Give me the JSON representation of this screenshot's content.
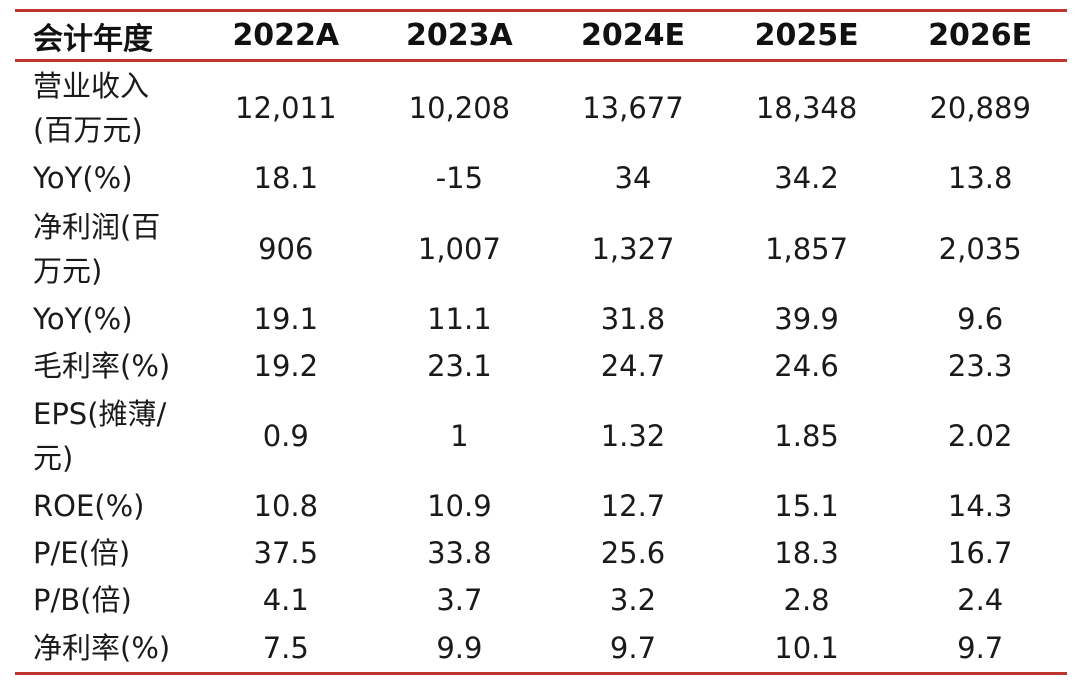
{
  "colors": {
    "rule": "#c0342e",
    "text": "#1a1a1a"
  },
  "table": {
    "header": [
      "会计年度",
      "2022A",
      "2023A",
      "2024E",
      "2025E",
      "2026E"
    ],
    "rows": [
      {
        "label": "营业收入\n(百万元)",
        "values": [
          "12,011",
          "10,208",
          "13,677",
          "18,348",
          "20,889"
        ]
      },
      {
        "label": "YoY(%)",
        "values": [
          "18.1",
          "-15",
          "34",
          "34.2",
          "13.8"
        ]
      },
      {
        "label": "净利润(百\n万元)",
        "values": [
          "906",
          "1,007",
          "1,327",
          "1,857",
          "2,035"
        ]
      },
      {
        "label": "YoY(%)",
        "values": [
          "19.1",
          "11.1",
          "31.8",
          "39.9",
          "9.6"
        ]
      },
      {
        "label": "毛利率(%)",
        "values": [
          "19.2",
          "23.1",
          "24.7",
          "24.6",
          "23.3"
        ]
      },
      {
        "label": "EPS(摊薄/\n元)",
        "values": [
          "0.9",
          "1",
          "1.32",
          "1.85",
          "2.02"
        ]
      },
      {
        "label": "ROE(%)",
        "values": [
          "10.8",
          "10.9",
          "12.7",
          "15.1",
          "14.3"
        ]
      },
      {
        "label": "P/E(倍)",
        "values": [
          "37.5",
          "33.8",
          "25.6",
          "18.3",
          "16.7"
        ]
      },
      {
        "label": "P/B(倍)",
        "values": [
          "4.1",
          "3.7",
          "3.2",
          "2.8",
          "2.4"
        ]
      },
      {
        "label": "净利率(%)",
        "values": [
          "7.5",
          "9.9",
          "9.7",
          "10.1",
          "9.7"
        ]
      }
    ]
  }
}
